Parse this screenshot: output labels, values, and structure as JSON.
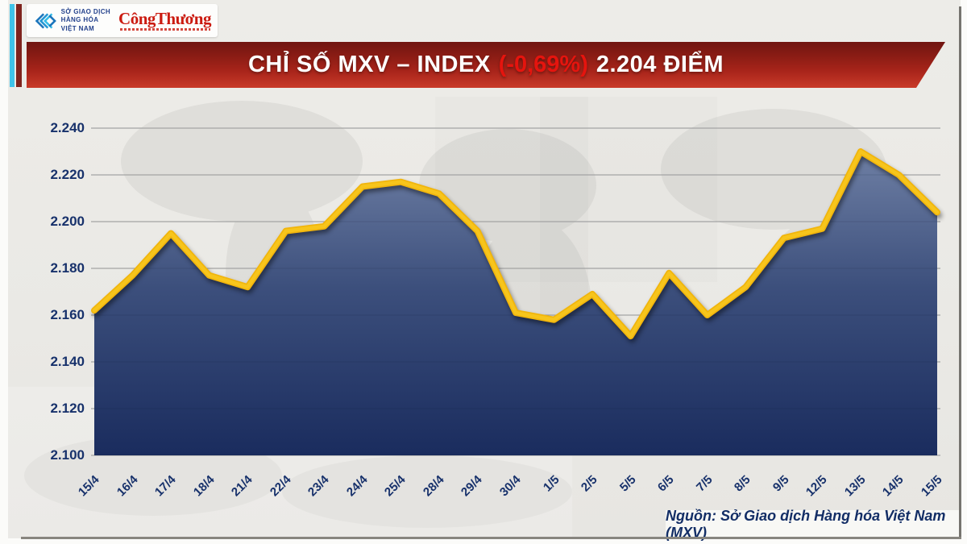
{
  "brand": {
    "org_name": "SỞ GIAO DỊCH<br>HÀNG HÓA<br>VIỆT NAM",
    "org_lines": [
      "SỞ GIAO DỊCH",
      "HÀNG HÓA",
      "VIỆT NAM"
    ],
    "newspaper": "CôngThương"
  },
  "banner": {
    "title_prefix": "CHỈ SỐ MXV – INDEX",
    "change": "(-0,69%)",
    "title_suffix": "2.204 ĐIỂM"
  },
  "chart_data": {
    "type": "area",
    "title": "CHỈ SỐ MXV – INDEX (-0,69%) 2.204 ĐIỂM",
    "categories": [
      "15/4",
      "16/4",
      "17/4",
      "18/4",
      "21/4",
      "22/4",
      "23/4",
      "24/4",
      "25/4",
      "28/4",
      "29/4",
      "30/4",
      "1/5",
      "2/5",
      "5/5",
      "6/5",
      "7/5",
      "8/5",
      "9/5",
      "12/5",
      "13/5",
      "14/5",
      "15/5"
    ],
    "values": [
      2162,
      2177,
      2195,
      2177,
      2172,
      2196,
      2198,
      2215,
      2217,
      2212,
      2196,
      2161,
      2158,
      2169,
      2151,
      2178,
      2160,
      2172,
      2193,
      2197,
      2230,
      2220,
      2204
    ],
    "xlabel": "",
    "ylabel": "",
    "ylim": [
      2100,
      2240
    ],
    "y_tick_values": [
      2240,
      2220,
      2200,
      2180,
      2160,
      2140,
      2120,
      2100
    ],
    "y_tick_labels": [
      "2.240",
      "2.220",
      "2.200",
      "2.180",
      "2.160",
      "2.140",
      "2.120",
      "2.100"
    ],
    "grid": "horizontal",
    "legend": "none",
    "last_value_label": "2.204",
    "colors": {
      "line": "#f1b50c",
      "line_highlight": "#f7c51c",
      "fill_top": "#6e7fa4",
      "fill_mid": "#3c4f7c",
      "fill_bottom": "#1a2c5e",
      "gridline": "#b7b6b3",
      "axis_text": "#17316b",
      "banner_red": "#a7241a",
      "change_red": "#e5140e"
    }
  },
  "footer": {
    "source": "Nguồn: Sở Giao dịch Hàng hóa Việt Nam (MXV)"
  }
}
